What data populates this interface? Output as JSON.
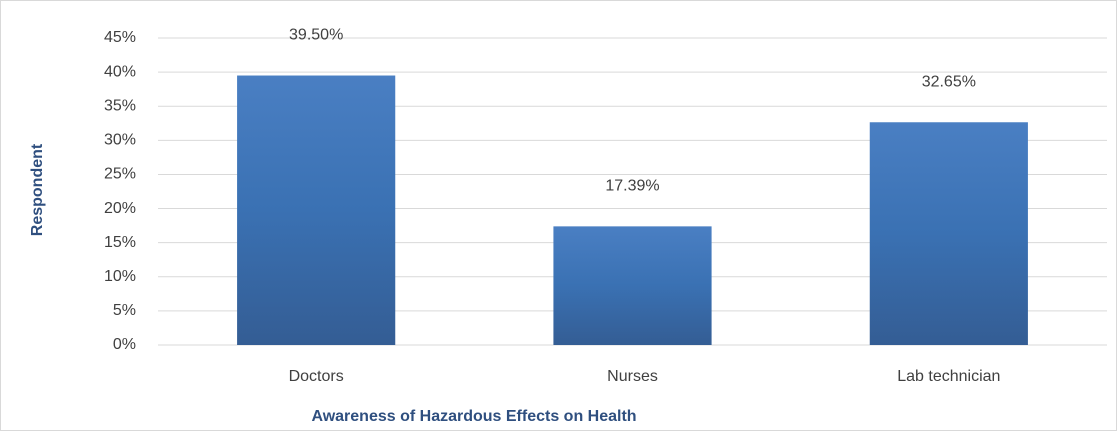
{
  "chart_data": {
    "type": "bar",
    "categories": [
      "Doctors",
      "Nurses",
      "Lab technician"
    ],
    "values": [
      39.5,
      17.39,
      32.65
    ],
    "value_labels": [
      "39.50%",
      "17.39%",
      "32.65%"
    ],
    "color": "#3f72b5",
    "ylim": [
      0,
      45
    ],
    "yticks": [
      {
        "value": 0,
        "label": "0%"
      },
      {
        "value": 5,
        "label": "5%"
      },
      {
        "value": 10,
        "label": "10%"
      },
      {
        "value": 15,
        "label": "15%"
      },
      {
        "value": 20,
        "label": "20%"
      },
      {
        "value": 25,
        "label": "25%"
      },
      {
        "value": 30,
        "label": "30%"
      },
      {
        "value": 35,
        "label": "35%"
      },
      {
        "value": 40,
        "label": "40%"
      },
      {
        "value": 45,
        "label": "45%"
      }
    ],
    "grid": true,
    "y_label": "Respondent",
    "x_label": "Awareness of Hazardous Effects on Health"
  }
}
